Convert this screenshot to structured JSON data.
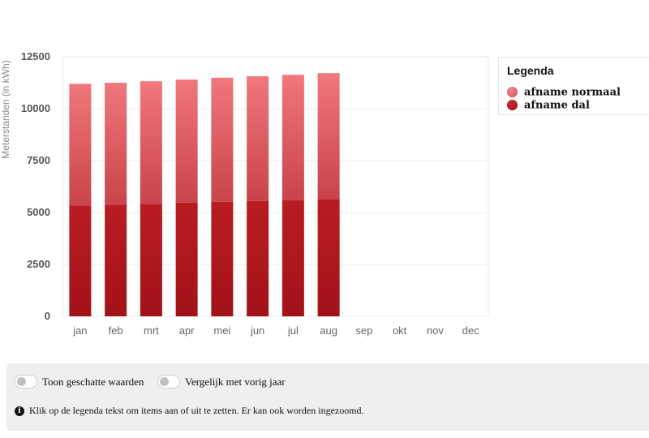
{
  "chart_data": {
    "type": "bar",
    "stacked": true,
    "categories": [
      "jan",
      "feb",
      "mrt",
      "apr",
      "mei",
      "jun",
      "jul",
      "aug",
      "sep",
      "okt",
      "nov",
      "dec"
    ],
    "series": [
      {
        "name": "afname dal",
        "color": "#b0171e",
        "values": [
          5330,
          5380,
          5420,
          5480,
          5520,
          5560,
          5600,
          5650,
          null,
          null,
          null,
          null
        ]
      },
      {
        "name": "afname normaal",
        "color": "#e25d64",
        "values": [
          5870,
          5870,
          5900,
          5920,
          5970,
          6000,
          6030,
          6060,
          null,
          null,
          null,
          null
        ]
      }
    ],
    "ylabel": "Meterstanden (in kWh)",
    "ylim": [
      0,
      12500
    ],
    "yticks": [
      0,
      2500,
      5000,
      7500,
      10000,
      12500
    ],
    "ytick_labels": [
      "0",
      "2500",
      "5000",
      "7500",
      "10000",
      "12500"
    ],
    "grid": true,
    "legend": {
      "title": "Legenda",
      "position": "right",
      "entries": [
        "afname normaal",
        "afname dal"
      ]
    }
  },
  "controls": {
    "toggle_estimated": "Toon geschatte waarden",
    "toggle_compare": "Vergelijk met vorig jaar",
    "info_icon": "info-circle-icon",
    "info_text": "Klik op de legenda tekst om items aan of uit te zetten. Er kan ook worden ingezoomd."
  }
}
